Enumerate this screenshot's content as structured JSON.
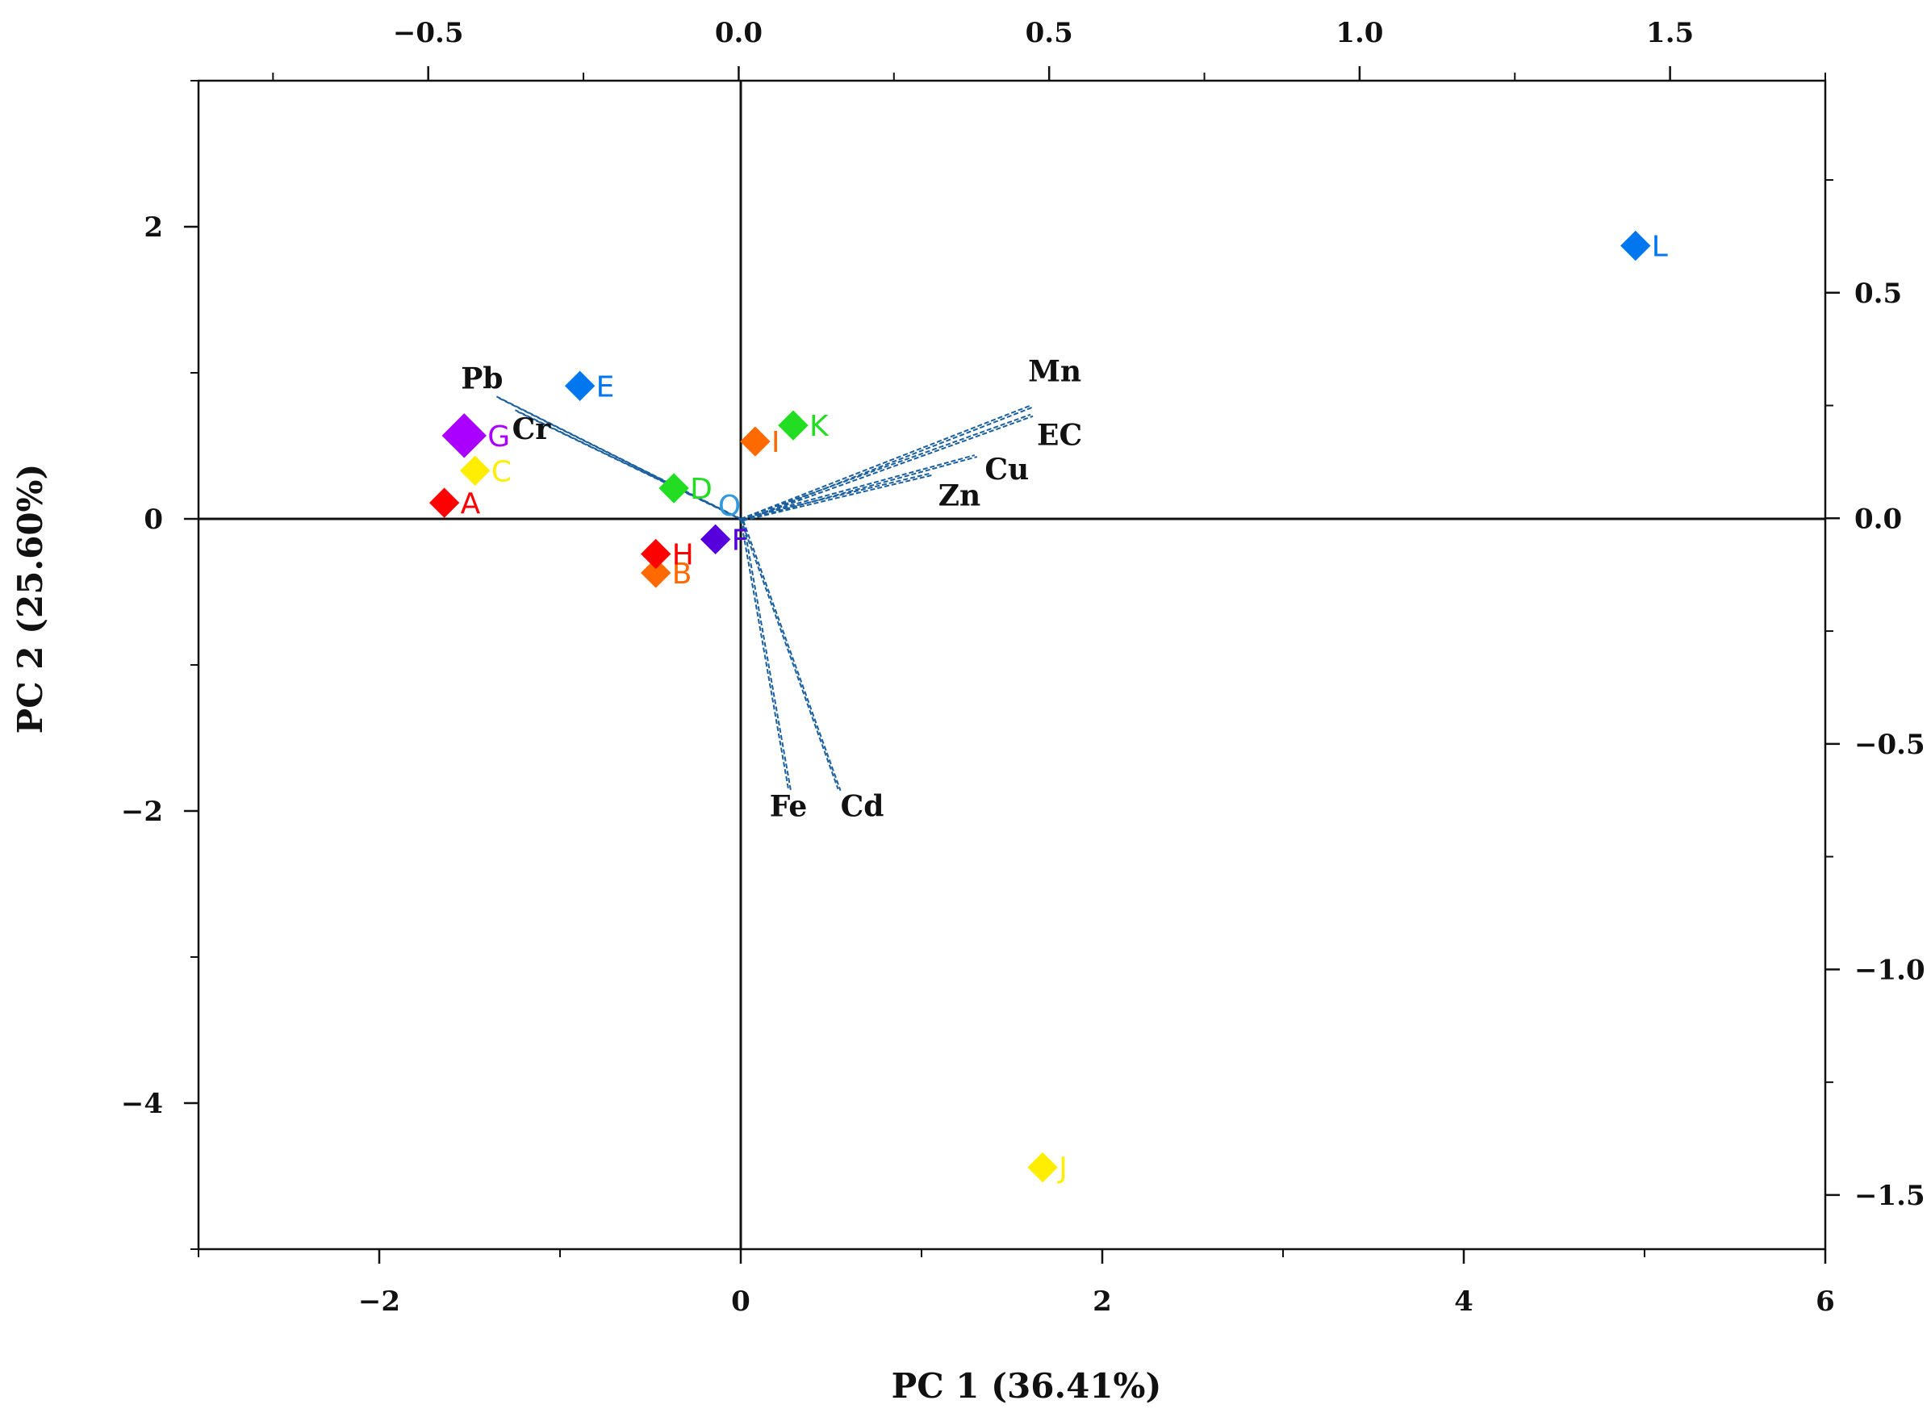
{
  "chart_data": {
    "type": "scatter",
    "subtype": "pca-biplot",
    "title": "",
    "xlabel": "PC 1 (36.41%)",
    "ylabel": "PC 2 (25.60%)",
    "xlim": [
      -3,
      6
    ],
    "ylim": [
      -5,
      3
    ],
    "x_ticks": [
      -2,
      0,
      2,
      4,
      6
    ],
    "x_tick_labels": [
      "−2",
      "0",
      "2",
      "4",
      "6"
    ],
    "y_ticks": [
      -4,
      -2,
      0,
      2
    ],
    "y_tick_labels": [
      "−4",
      "−2",
      "0",
      "2"
    ],
    "top_axis": {
      "lim": [
        -0.87,
        1.75
      ],
      "ticks": [
        -0.5,
        0.0,
        0.5,
        1.0,
        1.5
      ],
      "tick_labels": [
        "−0.5",
        "0.0",
        "0.5",
        "1.0",
        "1.5"
      ]
    },
    "right_axis": {
      "lim": [
        -1.62,
        0.97
      ],
      "ticks": [
        0.5,
        0.0,
        -0.5,
        -1.0,
        -1.5
      ],
      "tick_labels": [
        "0.5",
        "0.0",
        "−0.5",
        "−1.0",
        "−1.5"
      ]
    },
    "grid": false,
    "scores": [
      {
        "label": "A",
        "x": -1.64,
        "y": 0.11,
        "color": "#ff0000"
      },
      {
        "label": "B",
        "x": -0.47,
        "y": -0.37,
        "color": "#ff6a00"
      },
      {
        "label": "C",
        "x": -1.47,
        "y": 0.33,
        "color": "#ffee00"
      },
      {
        "label": "D",
        "x": -0.37,
        "y": 0.21,
        "color": "#22dd22"
      },
      {
        "label": "E",
        "x": -0.89,
        "y": 0.91,
        "color": "#0077ee"
      },
      {
        "label": "F",
        "x": -0.14,
        "y": -0.14,
        "color": "#5500dd"
      },
      {
        "label": "G",
        "x": -1.53,
        "y": 0.57,
        "color": "#aa00ff"
      },
      {
        "label": "H",
        "x": -0.47,
        "y": -0.24,
        "color": "#ff0000"
      },
      {
        "label": "I",
        "x": 0.08,
        "y": 0.53,
        "color": "#ff6a00"
      },
      {
        "label": "J",
        "x": 1.67,
        "y": -4.44,
        "color": "#ffee00"
      },
      {
        "label": "K",
        "x": 0.29,
        "y": 0.64,
        "color": "#22dd22"
      },
      {
        "label": "L",
        "x": 4.95,
        "y": 1.87,
        "color": "#0077ee"
      }
    ],
    "loadings": [
      {
        "label": "Pb",
        "x": -0.39,
        "y": 0.27
      },
      {
        "label": "Cr",
        "x": -0.36,
        "y": 0.24
      },
      {
        "label": "Mn",
        "x": 0.47,
        "y": 0.25
      },
      {
        "label": "EC",
        "x": 0.47,
        "y": 0.23
      },
      {
        "label": "Cu",
        "x": 0.38,
        "y": 0.14
      },
      {
        "label": "Zn",
        "x": 0.31,
        "y": 0.1
      },
      {
        "label": "Fe",
        "x": 0.08,
        "y": -0.6
      },
      {
        "label": "Cd",
        "x": 0.16,
        "y": -0.6
      }
    ],
    "origin_label": "O",
    "origin_label_color": "#3399dd"
  }
}
